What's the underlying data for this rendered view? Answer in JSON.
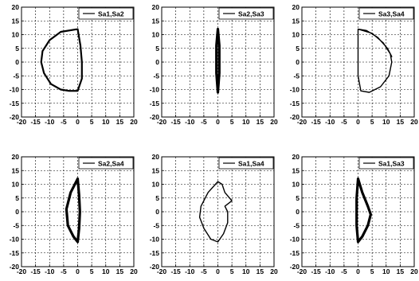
{
  "chart_data": [
    {
      "type": "line",
      "xlim": [
        -20,
        20
      ],
      "ylim": [
        -20,
        20
      ],
      "xticks": [
        "-20",
        "-15",
        "-10",
        "-5",
        "0",
        "5",
        "10",
        "15",
        "20"
      ],
      "yticks": [
        "20",
        "15",
        "10",
        "5",
        "0",
        "-5",
        "-10",
        "-15",
        "-20"
      ],
      "grid": true,
      "legend_position": "top-right",
      "series": [
        {
          "name": "Sa1,Sa2",
          "x": [
            0,
            -6,
            -10,
            -12.5,
            -13,
            -12,
            -9.5,
            -6,
            -3,
            0,
            1.5,
            1.5,
            1,
            0
          ],
          "y": [
            12,
            11,
            8,
            4,
            0,
            -4,
            -8,
            -10,
            -10.5,
            -10.5,
            -6,
            0,
            6,
            12
          ]
        }
      ]
    },
    {
      "type": "line",
      "xlim": [
        -20,
        20
      ],
      "ylim": [
        -20,
        20
      ],
      "xticks": [
        "-20",
        "-15",
        "-10",
        "-5",
        "0",
        "5",
        "10",
        "15",
        "20"
      ],
      "yticks": [
        "20",
        "15",
        "10",
        "5",
        "0",
        "-5",
        "-10",
        "-15",
        "-20"
      ],
      "grid": true,
      "legend_position": "top-right",
      "series": [
        {
          "name": "Sa2,Sa3",
          "x": [
            0,
            0.5,
            0.5,
            0,
            -0.5,
            -0.5,
            0
          ],
          "y": [
            12,
            6,
            -4,
            -11,
            -4,
            6,
            12
          ]
        }
      ]
    },
    {
      "type": "line",
      "xlim": [
        -20,
        20
      ],
      "ylim": [
        -20,
        20
      ],
      "xticks": [
        "-20",
        "-15",
        "-10",
        "-5",
        "0",
        "5",
        "10",
        "15",
        "20"
      ],
      "yticks": [
        "20",
        "15",
        "10",
        "5",
        "0",
        "-5",
        "-10",
        "-15",
        "-20"
      ],
      "grid": true,
      "legend_position": "top-right",
      "series": [
        {
          "name": "Sa3,Sa4",
          "x": [
            0,
            5,
            9,
            11.5,
            12,
            11,
            8,
            4,
            1,
            0,
            0,
            0,
            3,
            7,
            10.5,
            12
          ],
          "y": [
            12,
            10.5,
            7,
            3,
            0,
            -5,
            -9,
            -11,
            -10.5,
            -5,
            5,
            12,
            11.5,
            9,
            5,
            2
          ]
        }
      ]
    },
    {
      "type": "line",
      "xlim": [
        -20,
        20
      ],
      "ylim": [
        -20,
        20
      ],
      "xticks": [
        "-20",
        "-15",
        "-10",
        "-5",
        "0",
        "5",
        "10",
        "15",
        "20"
      ],
      "yticks": [
        "20",
        "15",
        "10",
        "5",
        "0",
        "-5",
        "-10",
        "-15",
        "-20"
      ],
      "grid": true,
      "legend_position": "top-right",
      "series": [
        {
          "name": "Sa2,Sa4",
          "x": [
            0,
            -2.5,
            -4,
            -3.5,
            -1.5,
            0,
            0.5,
            0.8,
            0.5,
            0
          ],
          "y": [
            12,
            7,
            1,
            -5,
            -9,
            -11,
            -6,
            0,
            6,
            12
          ]
        }
      ]
    },
    {
      "type": "line",
      "xlim": [
        -20,
        20
      ],
      "ylim": [
        -20,
        20
      ],
      "xticks": [
        "-20",
        "-15",
        "-10",
        "-5",
        "0",
        "5",
        "10",
        "15",
        "20"
      ],
      "yticks": [
        "20",
        "15",
        "10",
        "5",
        "0",
        "-5",
        "-10",
        "-15",
        "-20"
      ],
      "grid": true,
      "legend_position": "top-right",
      "series": [
        {
          "name": "Sa1,Sa4",
          "x": [
            0,
            -3.5,
            -6,
            -6.5,
            -5,
            -2.5,
            0,
            2,
            3.5,
            3.5,
            2.5,
            5,
            2.5,
            1.5,
            0
          ],
          "y": [
            11,
            7,
            2,
            -2,
            -6,
            -10,
            -11,
            -8,
            -4,
            0,
            2,
            4,
            7,
            10,
            11
          ]
        }
      ]
    },
    {
      "type": "line",
      "xlim": [
        -20,
        20
      ],
      "ylim": [
        -20,
        20
      ],
      "xticks": [
        "-20",
        "-15",
        "-10",
        "-5",
        "0",
        "5",
        "10",
        "15",
        "20"
      ],
      "yticks": [
        "20",
        "15",
        "10",
        "5",
        "0",
        "-5",
        "-10",
        "-15",
        "-20"
      ],
      "grid": true,
      "legend_position": "top-right",
      "series": [
        {
          "name": "Sa1,Sa3",
          "x": [
            0,
            1.5,
            3.5,
            4.5,
            3.5,
            1.5,
            0,
            -0.5,
            -0.5,
            0
          ],
          "y": [
            12,
            7,
            2,
            -1,
            -5,
            -9,
            -11,
            -5,
            5,
            12
          ]
        }
      ]
    }
  ]
}
